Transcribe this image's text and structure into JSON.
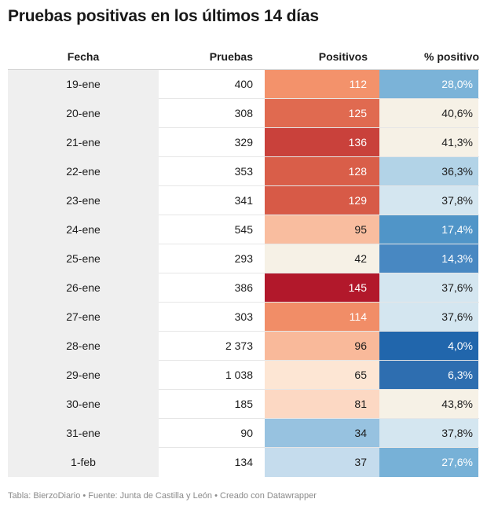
{
  "title": "Pruebas positivas en los últimos 14 días",
  "footer": "Tabla: BierzoDiario • Fuente: Junta de Castilla y León • Creado con Datawrapper",
  "chart_data": {
    "type": "table",
    "columns": [
      "Fecha",
      "Pruebas",
      "Positivos",
      "% positivo"
    ],
    "rows": [
      {
        "fecha": "19-ene",
        "pruebas": "400",
        "positivos": "112",
        "pct": "28,0%",
        "pos_bg": "#f3926b",
        "pos_fg": "#ffffff",
        "pct_bg": "#7bb3d8",
        "pct_fg": "#ffffff"
      },
      {
        "fecha": "20-ene",
        "pruebas": "308",
        "positivos": "125",
        "pct": "40,6%",
        "pos_bg": "#e06a50",
        "pos_fg": "#ffffff",
        "pct_bg": "#f6f1e6",
        "pct_fg": "#1d1d1d"
      },
      {
        "fecha": "21-ene",
        "pruebas": "329",
        "positivos": "136",
        "pct": "41,3%",
        "pos_bg": "#c9413b",
        "pos_fg": "#ffffff",
        "pct_bg": "#f6f1e6",
        "pct_fg": "#1d1d1d"
      },
      {
        "fecha": "22-ene",
        "pruebas": "353",
        "positivos": "128",
        "pct": "36,3%",
        "pos_bg": "#d95e49",
        "pos_fg": "#ffffff",
        "pct_bg": "#b2d3e7",
        "pct_fg": "#1d1d1d"
      },
      {
        "fecha": "23-ene",
        "pruebas": "341",
        "positivos": "129",
        "pct": "37,8%",
        "pos_bg": "#d75a47",
        "pos_fg": "#ffffff",
        "pct_bg": "#d4e6f0",
        "pct_fg": "#1d1d1d"
      },
      {
        "fecha": "24-ene",
        "pruebas": "545",
        "positivos": "95",
        "pct": "17,4%",
        "pos_bg": "#f9bd9f",
        "pos_fg": "#1d1d1d",
        "pct_bg": "#5095c8",
        "pct_fg": "#ffffff"
      },
      {
        "fecha": "25-ene",
        "pruebas": "293",
        "positivos": "42",
        "pct": "14,3%",
        "pos_bg": "#f6f1e6",
        "pos_fg": "#1d1d1d",
        "pct_bg": "#4888c2",
        "pct_fg": "#ffffff"
      },
      {
        "fecha": "26-ene",
        "pruebas": "386",
        "positivos": "145",
        "pct": "37,6%",
        "pos_bg": "#b2182b",
        "pos_fg": "#ffffff",
        "pct_bg": "#d4e6f0",
        "pct_fg": "#1d1d1d"
      },
      {
        "fecha": "27-ene",
        "pruebas": "303",
        "positivos": "114",
        "pct": "37,6%",
        "pos_bg": "#f18d67",
        "pos_fg": "#ffffff",
        "pct_bg": "#d4e6f0",
        "pct_fg": "#1d1d1d"
      },
      {
        "fecha": "28-ene",
        "pruebas": "2 373",
        "positivos": "96",
        "pct": "4,0%",
        "pos_bg": "#f9b99a",
        "pos_fg": "#1d1d1d",
        "pct_bg": "#2166ac",
        "pct_fg": "#ffffff"
      },
      {
        "fecha": "29-ene",
        "pruebas": "1 038",
        "positivos": "65",
        "pct": "6,3%",
        "pos_bg": "#fde6d4",
        "pos_fg": "#1d1d1d",
        "pct_bg": "#2e6eb0",
        "pct_fg": "#ffffff"
      },
      {
        "fecha": "30-ene",
        "pruebas": "185",
        "positivos": "81",
        "pct": "43,8%",
        "pos_bg": "#fcd8c3",
        "pos_fg": "#1d1d1d",
        "pct_bg": "#f6f1e6",
        "pct_fg": "#1d1d1d"
      },
      {
        "fecha": "31-ene",
        "pruebas": "90",
        "positivos": "34",
        "pct": "37,8%",
        "pos_bg": "#97c2e0",
        "pos_fg": "#1d1d1d",
        "pct_bg": "#d4e6f0",
        "pct_fg": "#1d1d1d"
      },
      {
        "fecha": "1-feb",
        "pruebas": "134",
        "positivos": "37",
        "pct": "27,6%",
        "pos_bg": "#c5dced",
        "pos_fg": "#1d1d1d",
        "pct_bg": "#77b1d7",
        "pct_fg": "#ffffff"
      }
    ]
  }
}
